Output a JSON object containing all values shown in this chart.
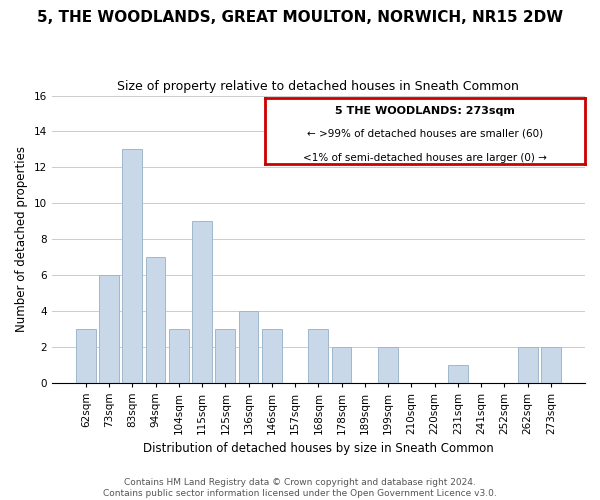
{
  "title": "5, THE WOODLANDS, GREAT MOULTON, NORWICH, NR15 2DW",
  "subtitle": "Size of property relative to detached houses in Sneath Common",
  "xlabel": "Distribution of detached houses by size in Sneath Common",
  "ylabel": "Number of detached properties",
  "bar_labels": [
    "62sqm",
    "73sqm",
    "83sqm",
    "94sqm",
    "104sqm",
    "115sqm",
    "125sqm",
    "136sqm",
    "146sqm",
    "157sqm",
    "168sqm",
    "178sqm",
    "189sqm",
    "199sqm",
    "210sqm",
    "220sqm",
    "231sqm",
    "241sqm",
    "252sqm",
    "262sqm",
    "273sqm"
  ],
  "bar_values": [
    3,
    6,
    13,
    7,
    3,
    9,
    3,
    4,
    3,
    0,
    3,
    2,
    0,
    2,
    0,
    0,
    1,
    0,
    0,
    2,
    2
  ],
  "bar_color": "#c8d8e8",
  "bar_edge_color": "#a0b8cc",
  "ylim": [
    0,
    16
  ],
  "yticks": [
    0,
    2,
    4,
    6,
    8,
    10,
    12,
    14,
    16
  ],
  "legend_title": "5 THE WOODLANDS: 273sqm",
  "legend_line1": "← >99% of detached houses are smaller (60)",
  "legend_line2": "<1% of semi-detached houses are larger (0) →",
  "legend_box_color": "#ffffff",
  "legend_box_edge": "#cc0000",
  "footer_line1": "Contains HM Land Registry data © Crown copyright and database right 2024.",
  "footer_line2": "Contains public sector information licensed under the Open Government Licence v3.0.",
  "grid_color": "#cccccc",
  "title_fontsize": 11,
  "subtitle_fontsize": 9,
  "axis_label_fontsize": 8.5,
  "tick_fontsize": 7.5,
  "footer_fontsize": 6.5
}
